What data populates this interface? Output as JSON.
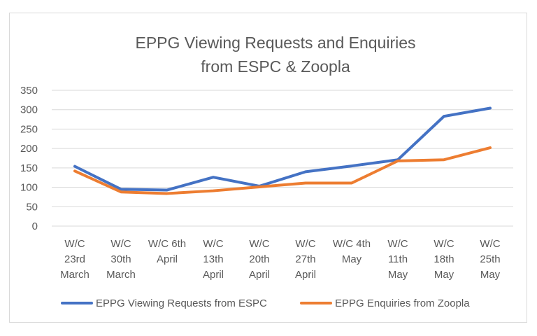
{
  "chart_data": {
    "type": "line",
    "title_lines": [
      "EPPG Viewing Requests and Enquiries",
      "from ESPC & Zoopla"
    ],
    "xlabel": "",
    "ylabel": "",
    "ylim": [
      0,
      350
    ],
    "yticks": [
      0,
      50,
      100,
      150,
      200,
      250,
      300,
      350
    ],
    "grid": true,
    "legend_position": "bottom",
    "categories": [
      "W/C 23rd March",
      "W/C 30th March",
      "W/C 6th April",
      "W/C 13th April",
      "W/C 20th April",
      "W/C 27th April",
      "W/C 4th May",
      "W/C 11th May",
      "W/C 18th May",
      "W/C 25th May"
    ],
    "category_label_lines": [
      [
        "W/C",
        "23rd",
        "March"
      ],
      [
        "W/C",
        "30th",
        "March"
      ],
      [
        "W/C 6th",
        "April"
      ],
      [
        "W/C",
        "13th",
        "April"
      ],
      [
        "W/C",
        "20th",
        "April"
      ],
      [
        "W/C",
        "27th",
        "April"
      ],
      [
        "W/C 4th",
        "May"
      ],
      [
        "W/C",
        "11th",
        "May"
      ],
      [
        "W/C",
        "18th",
        "May"
      ],
      [
        "W/C",
        "25th",
        "May"
      ]
    ],
    "series": [
      {
        "name": "EPPG Viewing Requests from ESPC",
        "color": "#4472c4",
        "values": [
          154,
          95,
          93,
          126,
          103,
          140,
          155,
          171,
          283,
          304
        ]
      },
      {
        "name": "EPPG Enquiries from Zoopla",
        "color": "#ed7d31",
        "values": [
          142,
          88,
          84,
          91,
          101,
          111,
          111,
          168,
          171,
          202
        ]
      }
    ],
    "colors": {
      "grid": "#d9d9d9",
      "text": "#595959",
      "border": "#d9d9d9"
    }
  }
}
